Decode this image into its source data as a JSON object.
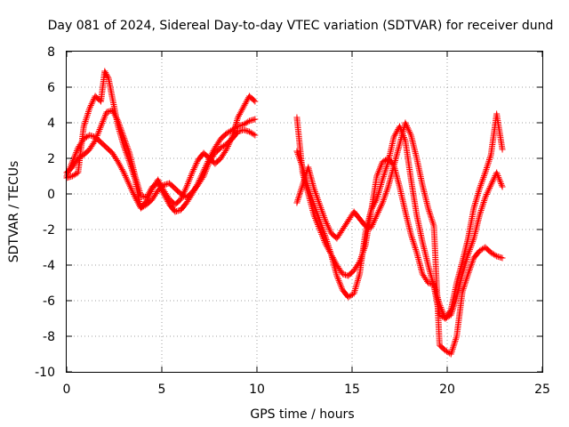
{
  "chart_data": {
    "type": "scatter",
    "title": "Day 081 of 2024, Sidereal Day-to-day VTEC variation (SDTVAR) for receiver dund",
    "xlabel": "GPS time / hours",
    "ylabel": "SDTVAR / TECUs",
    "xlim": [
      0,
      25
    ],
    "ylim": [
      -10,
      8
    ],
    "xticks": [
      0,
      5,
      10,
      15,
      20,
      25
    ],
    "yticks": [
      -10,
      -8,
      -6,
      -4,
      -2,
      0,
      2,
      4,
      6,
      8
    ],
    "grid": true,
    "legend": "none",
    "marker": "+",
    "color": "#ff0000",
    "series": [
      {
        "x": [
          0.0,
          0.3,
          0.6,
          0.9,
          1.2,
          1.5,
          1.8,
          2.1,
          2.4,
          2.7,
          3.0,
          3.3,
          3.6,
          3.9,
          4.2,
          4.5,
          4.8,
          5.1,
          5.4,
          5.7,
          6.0,
          6.3,
          6.6,
          6.9,
          7.2,
          7.5,
          7.8,
          8.1,
          8.4,
          8.7,
          9.0,
          9.3,
          9.6,
          9.9
        ],
        "y": [
          1.0,
          1.8,
          2.6,
          3.1,
          3.3,
          3.2,
          2.9,
          2.6,
          2.3,
          1.8,
          1.2,
          0.5,
          -0.2,
          -0.8,
          -0.6,
          -0.3,
          0.2,
          0.5,
          0.6,
          0.3,
          0.0,
          -0.2,
          0.1,
          0.5,
          1.0,
          1.8,
          2.3,
          2.6,
          2.8,
          3.1,
          3.5,
          3.6,
          3.5,
          3.3
        ]
      },
      {
        "x": [
          0.0,
          0.3,
          0.6,
          0.9,
          1.2,
          1.5,
          1.8,
          2.0,
          2.2,
          2.4,
          2.7,
          3.0,
          3.3,
          3.6,
          3.9,
          4.2,
          4.5,
          4.8,
          5.1,
          5.4,
          5.7,
          6.0,
          6.3,
          6.6,
          6.9,
          7.2,
          7.5,
          7.8,
          8.1,
          8.4,
          8.7,
          9.0,
          9.3,
          9.6,
          9.9
        ],
        "y": [
          0.9,
          1.0,
          1.2,
          3.8,
          4.8,
          5.5,
          5.2,
          6.9,
          6.5,
          5.4,
          3.8,
          2.7,
          1.8,
          0.8,
          -0.8,
          -0.4,
          0.3,
          0.8,
          0.2,
          -0.3,
          -0.6,
          -0.3,
          0.4,
          1.2,
          1.9,
          2.3,
          2.0,
          1.7,
          2.0,
          2.5,
          3.2,
          4.3,
          4.9,
          5.5,
          5.2
        ]
      },
      {
        "x": [
          0.0,
          0.3,
          0.6,
          0.9,
          1.2,
          1.5,
          1.8,
          2.1,
          2.4,
          2.7,
          3.0,
          3.3,
          3.6,
          3.9,
          4.2,
          4.5,
          4.8,
          5.1,
          5.4,
          5.7,
          6.0,
          6.3,
          6.6,
          6.9,
          7.2,
          7.5,
          7.8,
          8.1,
          8.4,
          8.7,
          9.0,
          9.3,
          9.6,
          9.9
        ],
        "y": [
          1.2,
          1.5,
          2.0,
          2.2,
          2.5,
          3.0,
          3.8,
          4.6,
          4.7,
          4.1,
          3.2,
          2.3,
          1.0,
          -0.1,
          -0.2,
          0.4,
          0.6,
          0.0,
          -0.6,
          -1.0,
          -0.9,
          -0.5,
          0.0,
          0.6,
          1.3,
          2.0,
          2.6,
          3.1,
          3.4,
          3.6,
          3.8,
          3.9,
          4.1,
          4.2
        ]
      },
      {
        "x": [
          12.1,
          12.4,
          12.7,
          13.0,
          13.3,
          13.6,
          13.9,
          14.2,
          14.5,
          14.8,
          15.1,
          15.4,
          15.7,
          16.0,
          16.3,
          16.6,
          16.9,
          17.2,
          17.5,
          17.8,
          18.1,
          18.4,
          18.7,
          19.0,
          19.3,
          19.6,
          19.9,
          20.2,
          20.5,
          20.8,
          21.1,
          21.4,
          21.7,
          22.0,
          22.3,
          22.6,
          22.9
        ],
        "y": [
          4.3,
          1.2,
          0.0,
          -1.2,
          -2.0,
          -2.8,
          -3.4,
          -4.0,
          -4.5,
          -4.6,
          -4.3,
          -3.8,
          -2.9,
          -1.0,
          1.0,
          1.8,
          2.0,
          1.6,
          0.4,
          -1.0,
          -2.3,
          -3.3,
          -4.5,
          -5.0,
          -5.1,
          -6.2,
          -7.0,
          -6.8,
          -5.8,
          -4.5,
          -3.4,
          -2.5,
          -1.2,
          -0.2,
          0.5,
          1.2,
          0.4
        ]
      },
      {
        "x": [
          12.1,
          12.4,
          12.7,
          13.0,
          13.3,
          13.6,
          13.9,
          14.2,
          14.5,
          14.8,
          15.1,
          15.4,
          15.7,
          16.0,
          16.3,
          16.6,
          16.9,
          17.2,
          17.5,
          17.8,
          18.1,
          18.4,
          18.7,
          19.0,
          19.3,
          19.6,
          19.9,
          20.2,
          20.5,
          20.8,
          21.1,
          21.4,
          21.7,
          22.0,
          22.3,
          22.6,
          22.9
        ],
        "y": [
          2.4,
          1.5,
          0.3,
          -0.6,
          -1.5,
          -2.4,
          -3.4,
          -4.6,
          -5.4,
          -5.8,
          -5.6,
          -4.5,
          -2.2,
          -0.9,
          -0.3,
          0.8,
          1.8,
          3.2,
          3.8,
          3.0,
          0.8,
          -1.2,
          -2.7,
          -4.0,
          -5.2,
          -6.8,
          -7.0,
          -6.5,
          -5.0,
          -3.8,
          -2.5,
          -0.8,
          0.3,
          1.2,
          2.2,
          4.5,
          2.5
        ]
      },
      {
        "x": [
          12.1,
          12.4,
          12.7,
          13.0,
          13.3,
          13.6,
          13.9,
          14.2,
          14.5,
          14.8,
          15.1,
          15.4,
          15.7,
          16.0,
          16.3,
          16.6,
          16.9,
          17.2,
          17.5,
          17.8,
          18.1,
          18.4,
          18.7,
          19.0,
          19.3,
          19.6,
          19.9,
          20.2,
          20.5,
          20.8,
          21.1,
          21.4,
          21.7,
          22.0,
          22.3,
          22.6,
          22.9
        ],
        "y": [
          -0.5,
          0.5,
          1.5,
          0.3,
          -0.6,
          -1.5,
          -2.2,
          -2.5,
          -2.0,
          -1.5,
          -1.0,
          -1.4,
          -1.8,
          -1.9,
          -1.2,
          -0.5,
          0.4,
          1.6,
          2.8,
          4.0,
          3.3,
          2.0,
          0.5,
          -0.8,
          -1.8,
          -8.5,
          -8.8,
          -9.0,
          -8.0,
          -5.5,
          -4.5,
          -3.6,
          -3.2,
          -3.0,
          -3.3,
          -3.5,
          -3.6
        ]
      }
    ]
  }
}
